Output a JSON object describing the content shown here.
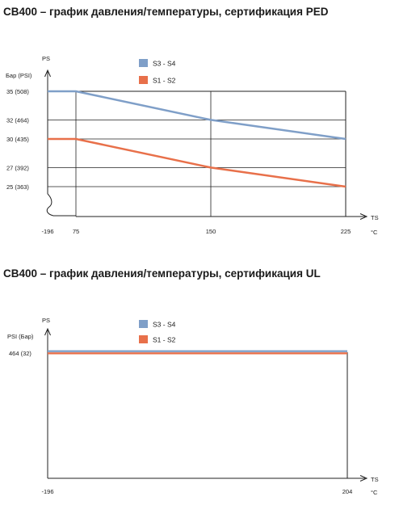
{
  "chart_data": [
    {
      "type": "line",
      "title": "СВ400 – график давления/температуры, сертификация PED",
      "ylabel": "PS",
      "yunit": "Бар (PSI)",
      "xlabel": "TS",
      "xunit": "°C",
      "x_ticks": [
        "-196",
        "75",
        "150",
        "225"
      ],
      "y_ticks": [
        {
          "value": 35,
          "label": "35  (508)"
        },
        {
          "value": 32,
          "label": "32  (464)"
        },
        {
          "value": 30,
          "label": "30  (435)"
        },
        {
          "value": 27,
          "label": "27  (392)"
        },
        {
          "value": 25,
          "label": "25  (363)"
        }
      ],
      "legend": "top-center",
      "grid": true,
      "axis_break": true,
      "series": [
        {
          "name": "S3 - S4",
          "color": "#7f9fc8",
          "points": [
            [
              -196,
              35
            ],
            [
              75,
              35
            ],
            [
              150,
              32
            ],
            [
              225,
              30
            ]
          ]
        },
        {
          "name": "S1 - S2",
          "color": "#e8704a",
          "points": [
            [
              -196,
              30
            ],
            [
              75,
              30
            ],
            [
              150,
              27
            ],
            [
              225,
              25
            ]
          ]
        }
      ]
    },
    {
      "type": "line",
      "title": "СВ400 – график давления/температуры, сертификация UL",
      "ylabel": "PS",
      "yunit": "PSI  (Бар)",
      "xlabel": "TS",
      "xunit": "°C",
      "x_ticks": [
        "-196",
        "204"
      ],
      "y_ticks": [
        {
          "value": 464,
          "label": "464  (32)"
        }
      ],
      "legend": "top-center",
      "grid": false,
      "series": [
        {
          "name": "S3 - S4",
          "color": "#7f9fc8",
          "points": [
            [
              -196,
              464
            ],
            [
              204,
              464
            ]
          ]
        },
        {
          "name": "S1 - S2",
          "color": "#e8704a",
          "points": [
            [
              -196,
              464
            ],
            [
              204,
              464
            ]
          ]
        }
      ]
    }
  ]
}
